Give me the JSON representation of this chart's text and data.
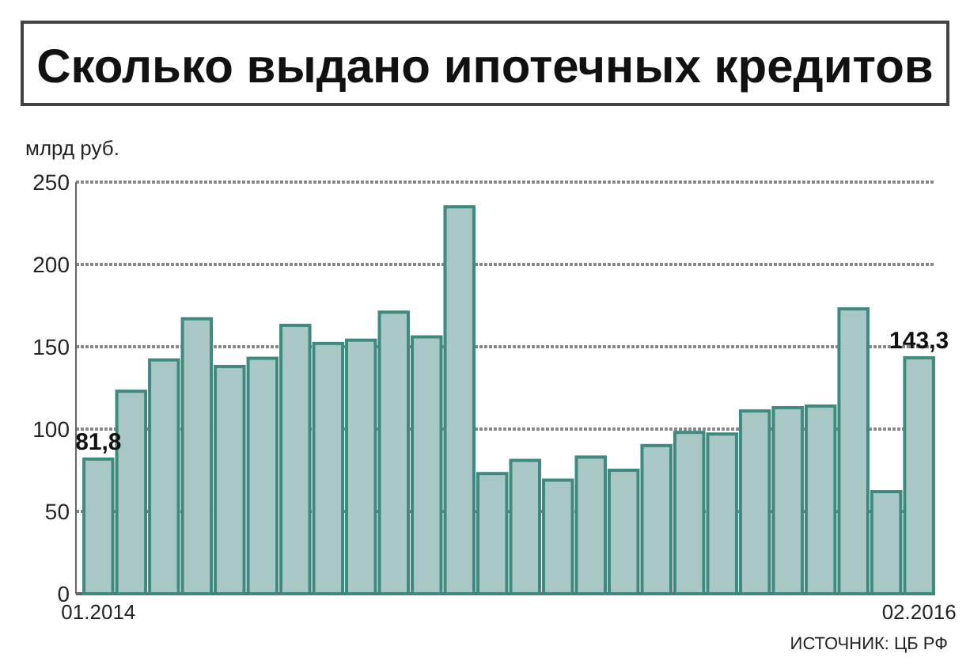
{
  "chart_data": {
    "type": "bar",
    "title": "Сколько выдано ипотечных кредитов",
    "ylabel": "млрд руб.",
    "categories": [
      "01.2014",
      null,
      null,
      null,
      null,
      null,
      null,
      null,
      null,
      null,
      null,
      null,
      null,
      null,
      null,
      null,
      null,
      null,
      null,
      null,
      null,
      null,
      null,
      null,
      null,
      "02.2016"
    ],
    "values": [
      81.8,
      123,
      142,
      167,
      138,
      143,
      163,
      152,
      154,
      171,
      156,
      235,
      73,
      81,
      69,
      83,
      75,
      90,
      98,
      97,
      111,
      113,
      114,
      173,
      62,
      143.3
    ],
    "value_labels": [
      "81,8",
      null,
      null,
      null,
      null,
      null,
      null,
      null,
      null,
      null,
      null,
      null,
      null,
      null,
      null,
      null,
      null,
      null,
      null,
      null,
      null,
      null,
      null,
      null,
      null,
      "143,3"
    ],
    "color": "#a8c7c5",
    "ylim": [
      0,
      250
    ],
    "yticks": [
      0,
      50,
      100,
      150,
      200,
      250
    ],
    "grid": "y",
    "annotations": [
      "ИСТОЧНИК: ЦБ РФ"
    ]
  }
}
